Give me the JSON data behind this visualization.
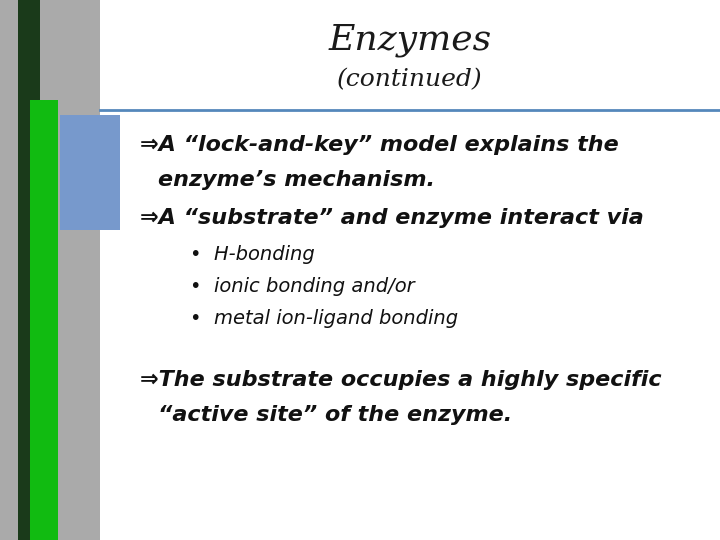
{
  "title": "Enzymes",
  "subtitle": "(continued)",
  "slide_bg": "#c0c0c0",
  "white_bg": "#ffffff",
  "title_color": "#1a1a1a",
  "header_line_color": "#5588bb",
  "dark_bar_color": "#1a3a1a",
  "green_bar_color": "#11bb11",
  "blue_rect_color": "#7799cc",
  "gray_col_color": "#999999",
  "bullet_arrow_color": "#6699bb",
  "bullet1_line1": "⇒A “lock-and-key” model explains the",
  "bullet1_line2": "enzyme’s mechanism.",
  "bullet2": "⇒A “substrate” and enzyme interact via",
  "sub_bullets": [
    "H-bonding",
    "ionic bonding and/or",
    "metal ion-ligand bonding"
  ],
  "bullet3_line1": "⇒The substrate occupies a highly specific",
  "bullet3_line2": "“active site” of the enzyme.",
  "title_fontsize": 26,
  "subtitle_fontsize": 18,
  "bullet_fontsize": 16,
  "subbullet_fontsize": 14
}
